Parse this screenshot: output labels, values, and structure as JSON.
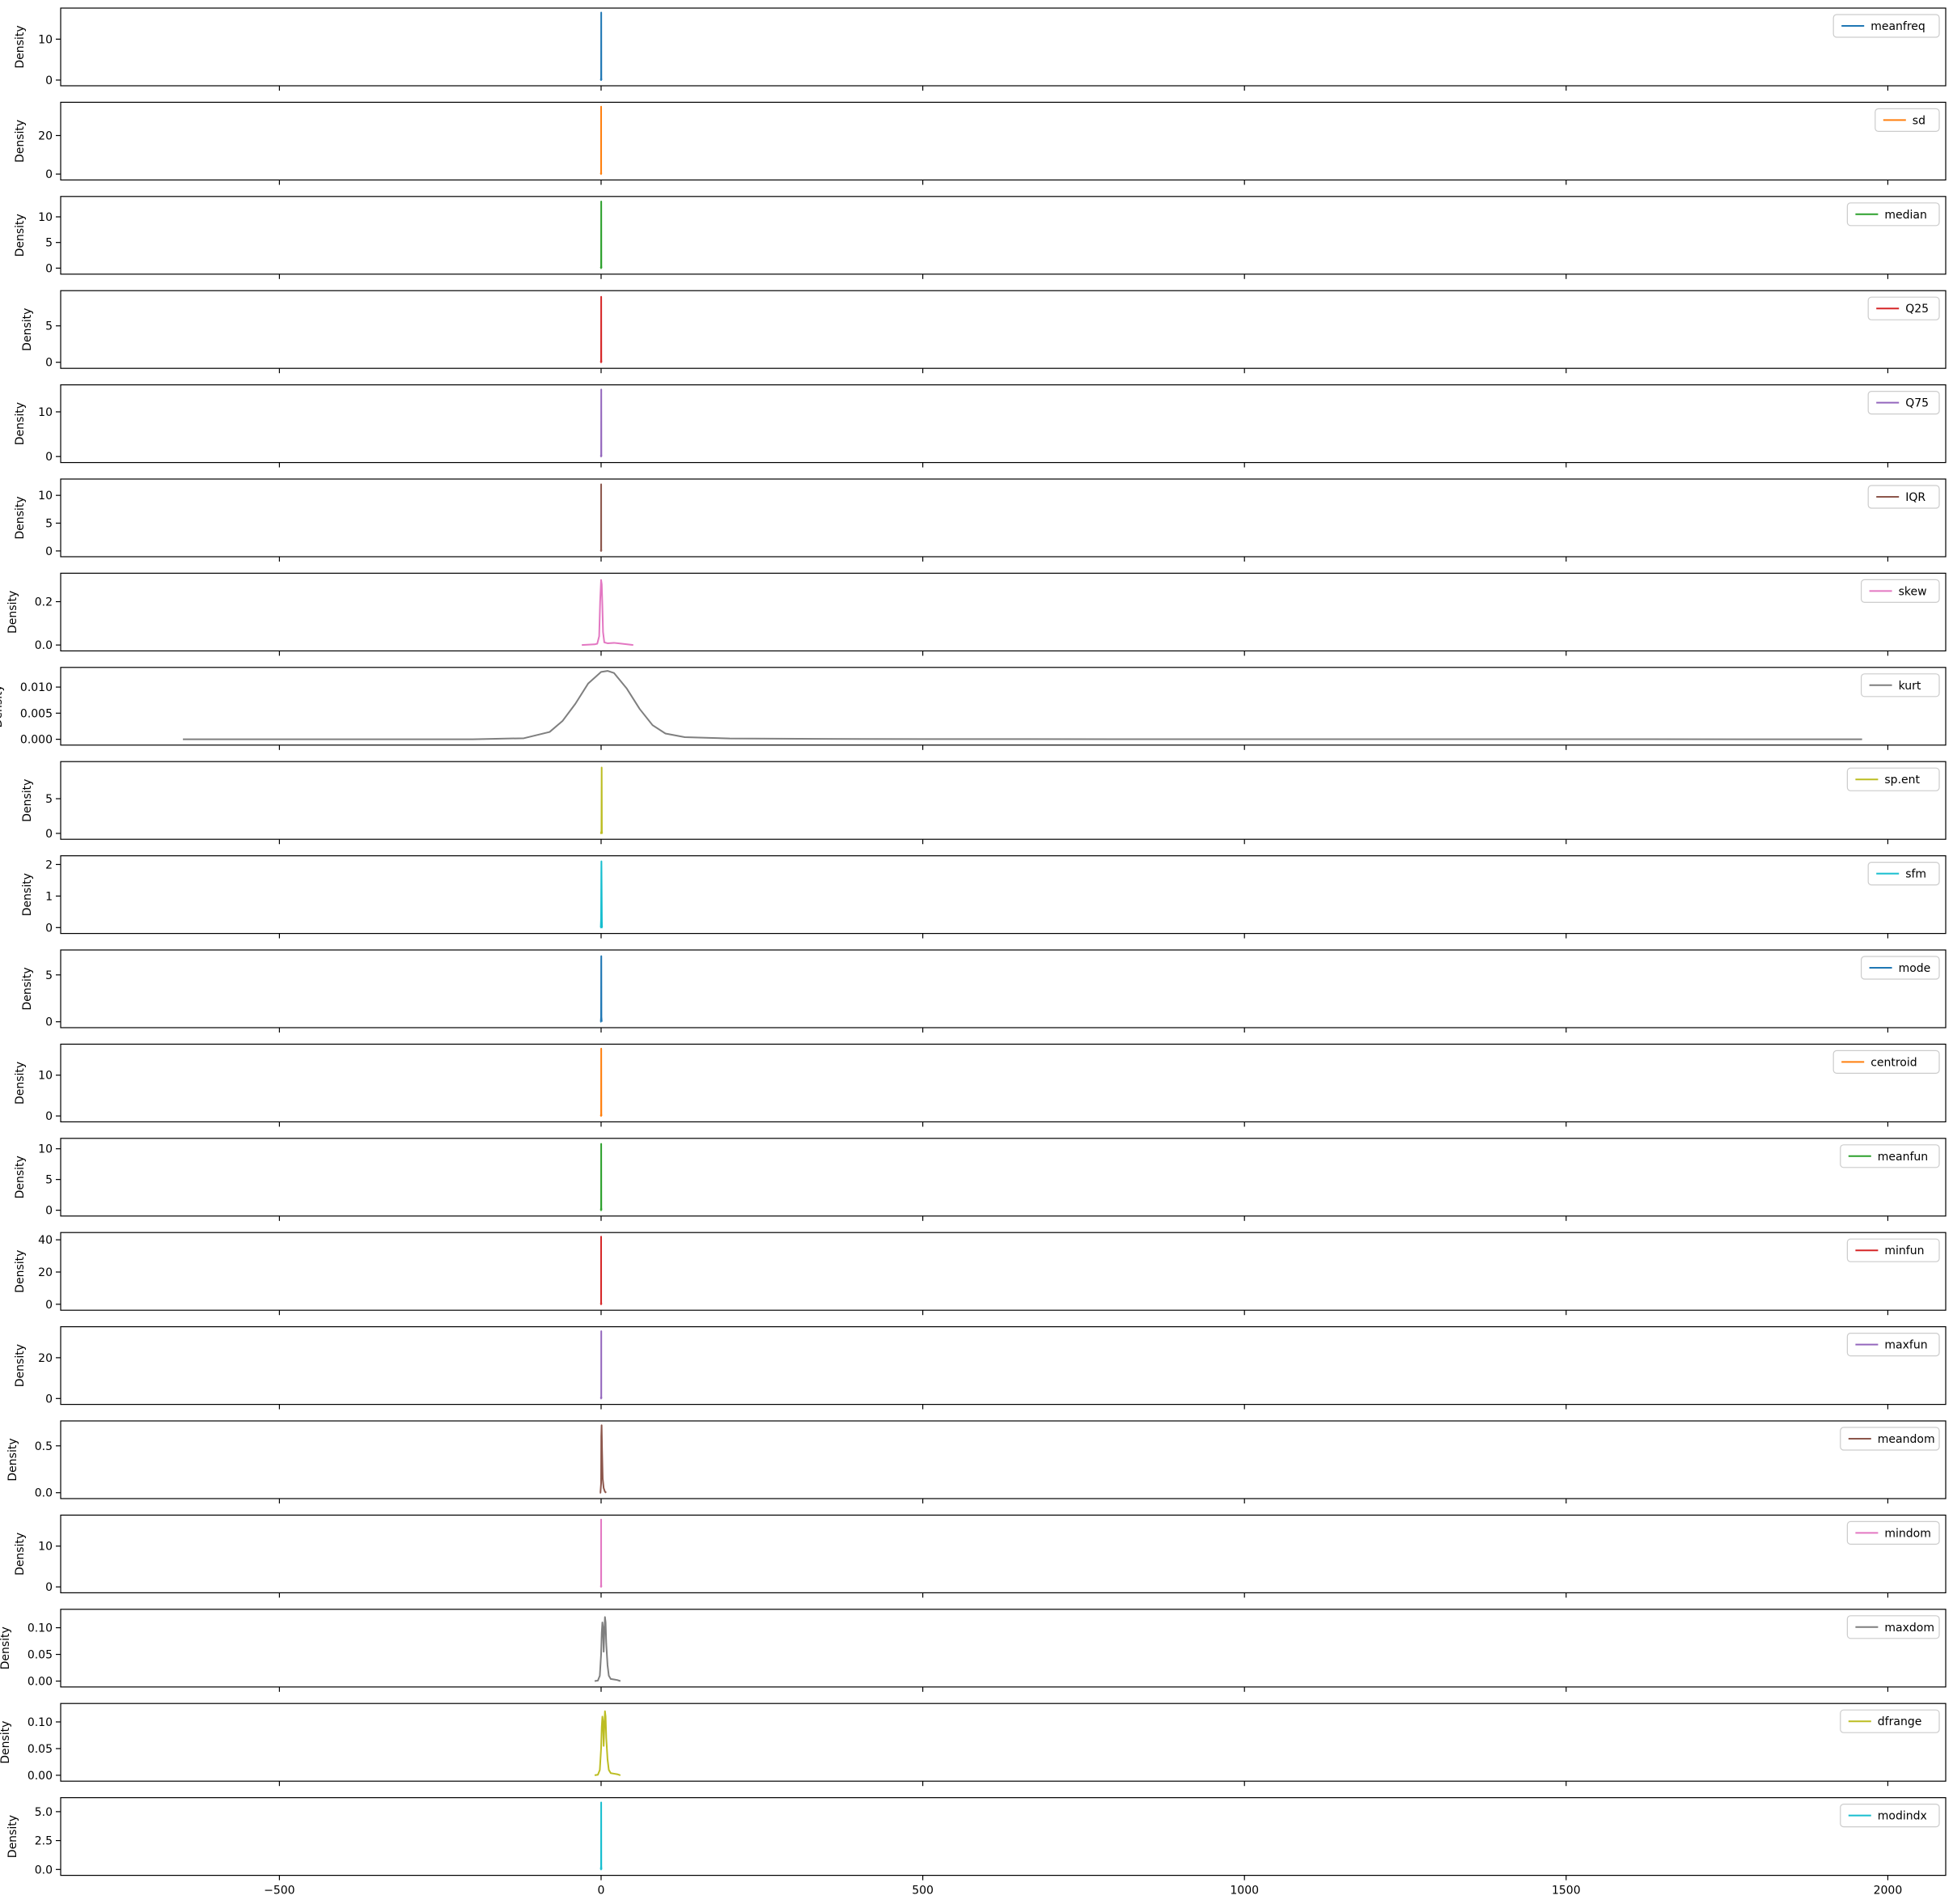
{
  "chart_data": {
    "type": "line",
    "xlim": [
      -840,
      2090
    ],
    "x_ticks": [
      -500,
      0,
      500,
      1000,
      1500,
      2000
    ],
    "x_tick_labels": [
      "−500",
      "0",
      "500",
      "1000",
      "1500",
      "2000"
    ],
    "ylabel": "Density",
    "grid": false,
    "legend_position": "top-right",
    "subplots": [
      {
        "name": "meanfreq",
        "color": "#1f77b4",
        "ylim": [
          -0.8,
          17
        ],
        "y_ticks": [
          0,
          10
        ],
        "y_tick_labels": [
          "0",
          "10"
        ],
        "x": [
          -1,
          -0.5,
          0.05,
          0.19,
          0.35,
          0.6,
          1
        ],
        "y": [
          0,
          0,
          0.5,
          16.5,
          0.5,
          0,
          0
        ]
      },
      {
        "name": "sd",
        "color": "#ff7f0e",
        "ylim": [
          -1.8,
          36
        ],
        "y_ticks": [
          0,
          20
        ],
        "y_tick_labels": [
          "0",
          "20"
        ],
        "x": [
          -1,
          -0.5,
          0.02,
          0.06,
          0.1,
          0.3,
          1
        ],
        "y": [
          0,
          0,
          1,
          35,
          1,
          0,
          0
        ]
      },
      {
        "name": "median",
        "color": "#2ca02c",
        "ylim": [
          -0.7,
          13.5
        ],
        "y_ticks": [
          0,
          5,
          10
        ],
        "y_tick_labels": [
          "0",
          "5",
          "10"
        ],
        "x": [
          -1,
          -0.5,
          0.05,
          0.19,
          0.35,
          0.6,
          1
        ],
        "y": [
          0,
          0,
          0.4,
          13,
          0.4,
          0,
          0
        ]
      },
      {
        "name": "Q25",
        "color": "#d62728",
        "ylim": [
          -0.5,
          9.5
        ],
        "y_ticks": [
          0,
          5
        ],
        "y_tick_labels": [
          "0",
          "5"
        ],
        "x": [
          -1,
          -0.5,
          0.03,
          0.14,
          0.28,
          0.6,
          1
        ],
        "y": [
          0,
          0,
          0.3,
          9,
          0.3,
          0,
          0
        ]
      },
      {
        "name": "Q75",
        "color": "#9467bd",
        "ylim": [
          -0.8,
          15.5
        ],
        "y_ticks": [
          0,
          10
        ],
        "y_tick_labels": [
          "0",
          "10"
        ],
        "x": [
          -1,
          -0.5,
          0.1,
          0.23,
          0.4,
          0.6,
          1
        ],
        "y": [
          0,
          0,
          0.4,
          15,
          0.4,
          0,
          0
        ]
      },
      {
        "name": "IQR",
        "color": "#8c564b",
        "ylim": [
          -0.6,
          12.5
        ],
        "y_ticks": [
          0,
          5,
          10
        ],
        "y_tick_labels": [
          "0",
          "5",
          "10"
        ],
        "x": [
          -1,
          -0.5,
          0.0,
          0.08,
          0.2,
          0.5,
          1
        ],
        "y": [
          0,
          0,
          0.3,
          12,
          0.3,
          0,
          0
        ]
      },
      {
        "name": "skew",
        "color": "#e377c2",
        "ylim": [
          -0.016,
          0.32
        ],
        "y_ticks": [
          0.0,
          0.2
        ],
        "y_tick_labels": [
          "0.0",
          "0.2"
        ],
        "x": [
          -30,
          -10,
          -6,
          -3,
          -1.5,
          0,
          1,
          2,
          3,
          5,
          10,
          20,
          35,
          50
        ],
        "y": [
          0,
          0.003,
          0.006,
          0.04,
          0.2,
          0.3,
          0.28,
          0.18,
          0.06,
          0.012,
          0.008,
          0.01,
          0.005,
          0
        ]
      },
      {
        "name": "kurt",
        "color": "#7f7f7f",
        "ylim": [
          -0.00065,
          0.0133
        ],
        "y_ticks": [
          0.0,
          0.005,
          0.01
        ],
        "y_tick_labels": [
          "0.000",
          "0.005",
          "0.010"
        ],
        "x": [
          -650,
          -200,
          -120,
          -80,
          -60,
          -40,
          -20,
          0,
          10,
          20,
          40,
          60,
          80,
          100,
          130,
          200,
          400,
          800,
          1200,
          1600,
          1960
        ],
        "y": [
          0,
          0,
          0.0002,
          0.0014,
          0.0035,
          0.0068,
          0.0107,
          0.0129,
          0.0131,
          0.0127,
          0.0097,
          0.0058,
          0.0027,
          0.0011,
          0.0004,
          0.00015,
          5e-05,
          2e-05,
          1e-05,
          1e-05,
          0
        ]
      },
      {
        "name": "sp.ent",
        "color": "#bcbd22",
        "ylim": [
          -0.5,
          10
        ],
        "y_ticks": [
          0,
          5
        ],
        "y_tick_labels": [
          "0",
          "5"
        ],
        "x": [
          -1,
          -0.5,
          0.55,
          0.89,
          1.2,
          1.6,
          2
        ],
        "y": [
          0,
          0,
          0.3,
          9.5,
          0.3,
          0,
          0
        ]
      },
      {
        "name": "sfm",
        "color": "#17becf",
        "ylim": [
          -0.11,
          2.2
        ],
        "y_ticks": [
          0,
          1,
          2
        ],
        "y_tick_labels": [
          "0",
          "1",
          "2"
        ],
        "x": [
          -1,
          -0.5,
          0.0,
          0.35,
          0.5,
          0.7,
          1.2,
          1.5,
          2
        ],
        "y": [
          0,
          0,
          0.3,
          1.7,
          2.1,
          1.6,
          0.2,
          0,
          0
        ]
      },
      {
        "name": "mode",
        "color": "#1f77b4",
        "ylim": [
          -0.37,
          7.4
        ],
        "y_ticks": [
          0,
          5
        ],
        "y_tick_labels": [
          "0",
          "5"
        ],
        "x": [
          -1,
          -0.5,
          0.0,
          0.2,
          0.3,
          0.5,
          1
        ],
        "y": [
          0,
          0,
          0.5,
          6.5,
          7,
          0.5,
          0
        ]
      },
      {
        "name": "centroid",
        "color": "#ff7f0e",
        "ylim": [
          -0.85,
          17
        ],
        "y_ticks": [
          0,
          10
        ],
        "y_tick_labels": [
          "0",
          "10"
        ],
        "x": [
          -1,
          -0.5,
          0.05,
          0.19,
          0.35,
          0.6,
          1
        ],
        "y": [
          0,
          0,
          0.5,
          16.5,
          0.5,
          0,
          0
        ]
      },
      {
        "name": "meanfun",
        "color": "#2ca02c",
        "ylim": [
          -0.55,
          11.3
        ],
        "y_ticks": [
          0,
          5,
          10
        ],
        "y_tick_labels": [
          "0",
          "5",
          "10"
        ],
        "x": [
          -1,
          -0.5,
          0.05,
          0.14,
          0.28,
          0.6,
          1
        ],
        "y": [
          0,
          0,
          0.4,
          10.8,
          0.4,
          0,
          0
        ]
      },
      {
        "name": "minfun",
        "color": "#d62728",
        "ylim": [
          -2.2,
          43
        ],
        "y_ticks": [
          0,
          20,
          40
        ],
        "y_tick_labels": [
          "0",
          "20",
          "40"
        ],
        "x": [
          -1,
          -0.5,
          0.0,
          0.04,
          0.1,
          0.5,
          1
        ],
        "y": [
          0,
          0,
          1,
          42,
          1,
          0,
          0
        ]
      },
      {
        "name": "maxfun",
        "color": "#9467bd",
        "ylim": [
          -1.7,
          34
        ],
        "y_ticks": [
          0,
          20
        ],
        "y_tick_labels": [
          "0",
          "20"
        ],
        "x": [
          -1,
          -0.5,
          0.2,
          0.26,
          0.3,
          0.6,
          1
        ],
        "y": [
          0,
          0,
          1,
          33,
          1,
          0,
          0
        ]
      },
      {
        "name": "meandom",
        "color": "#8c564b",
        "ylim": [
          -0.037,
          0.74
        ],
        "y_ticks": [
          0.0,
          0.5
        ],
        "y_tick_labels": [
          "0.0",
          "0.5"
        ],
        "x": [
          -2,
          -1,
          0,
          0.3,
          0.8,
          1.5,
          2.5,
          4,
          6,
          8
        ],
        "y": [
          0,
          0,
          0.1,
          0.6,
          0.72,
          0.45,
          0.15,
          0.05,
          0.01,
          0
        ]
      },
      {
        "name": "mindom",
        "color": "#e377c2",
        "ylim": [
          -0.85,
          17
        ],
        "y_ticks": [
          0,
          10
        ],
        "y_tick_labels": [
          "0",
          "10"
        ],
        "x": [
          -1,
          -0.5,
          0.0,
          0.05,
          0.15,
          0.5,
          1
        ],
        "y": [
          0,
          0,
          0.5,
          16.5,
          0.5,
          0,
          0
        ]
      },
      {
        "name": "maxdom",
        "color": "#7f7f7f",
        "ylim": [
          -0.0065,
          0.13
        ],
        "y_ticks": [
          0.0,
          0.05,
          0.1
        ],
        "y_tick_labels": [
          "0.00",
          "0.05",
          "0.10"
        ],
        "x": [
          -10,
          -5,
          -2,
          0,
          1,
          2,
          3,
          4,
          5,
          6,
          7,
          8,
          9,
          10,
          12,
          15,
          20,
          25,
          30
        ],
        "y": [
          0,
          0.001,
          0.01,
          0.05,
          0.09,
          0.11,
          0.1,
          0.055,
          0.09,
          0.12,
          0.11,
          0.07,
          0.05,
          0.03,
          0.01,
          0.004,
          0.003,
          0.002,
          0
        ]
      },
      {
        "name": "dfrange",
        "color": "#bcbd22",
        "ylim": [
          -0.0065,
          0.13
        ],
        "y_ticks": [
          0.0,
          0.05,
          0.1
        ],
        "y_tick_labels": [
          "0.00",
          "0.05",
          "0.10"
        ],
        "x": [
          -10,
          -5,
          -2,
          0,
          1,
          2,
          3,
          4,
          5,
          6,
          7,
          8,
          9,
          10,
          12,
          15,
          20,
          25,
          30
        ],
        "y": [
          0,
          0.001,
          0.01,
          0.05,
          0.09,
          0.11,
          0.1,
          0.055,
          0.09,
          0.12,
          0.11,
          0.07,
          0.05,
          0.03,
          0.01,
          0.004,
          0.003,
          0.002,
          0
        ]
      },
      {
        "name": "modindx",
        "color": "#17becf",
        "ylim": [
          -0.3,
          6
        ],
        "y_ticks": [
          0.0,
          2.5,
          5.0
        ],
        "y_tick_labels": [
          "0.0",
          "2.5",
          "5.0"
        ],
        "x": [
          -1,
          -0.5,
          0.0,
          0.13,
          0.3,
          0.6,
          1
        ],
        "y": [
          0,
          0,
          0.3,
          5.8,
          0.3,
          0,
          0
        ]
      }
    ]
  }
}
